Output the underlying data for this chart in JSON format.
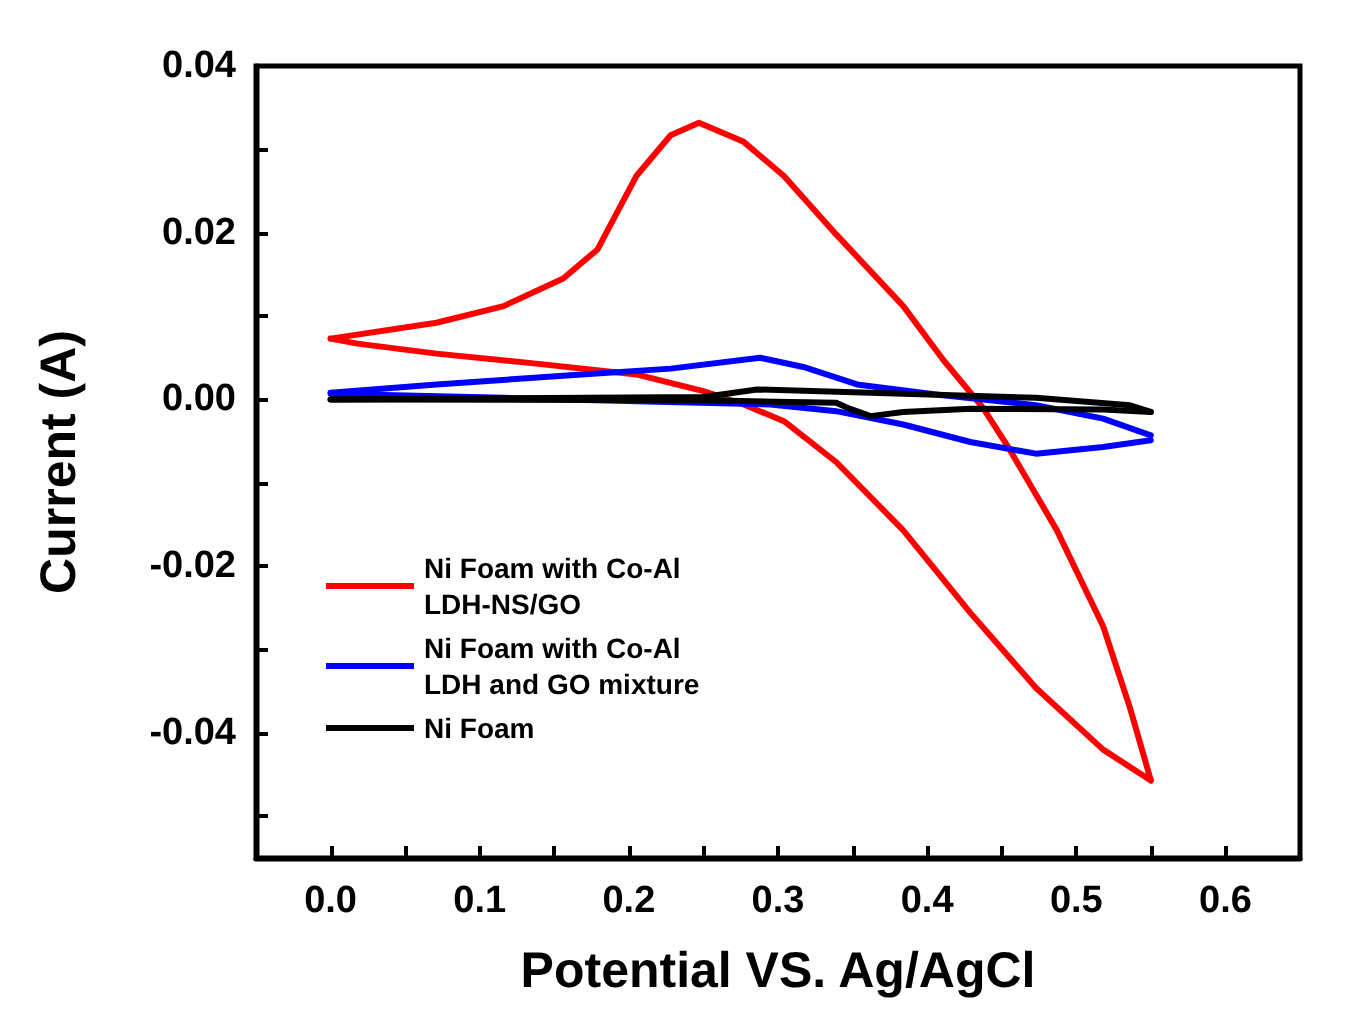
{
  "chart_data": {
    "type": "line",
    "xlabel": "Potential VS. Ag/AgCl",
    "ylabel": "Current (A)",
    "xlim": [
      -0.05,
      0.65
    ],
    "ylim": [
      -0.055,
      0.04
    ],
    "xticks": [
      {
        "value": 0,
        "label": "0.0"
      },
      {
        "value": 0.05,
        "label": null
      },
      {
        "value": 0.1,
        "label": "0.1"
      },
      {
        "value": 0.15,
        "label": null
      },
      {
        "value": 0.2,
        "label": "0.2"
      },
      {
        "value": 0.25,
        "label": null
      },
      {
        "value": 0.3,
        "label": "0.3"
      },
      {
        "value": 0.35,
        "label": null
      },
      {
        "value": 0.4,
        "label": "0.4"
      },
      {
        "value": 0.45,
        "label": null
      },
      {
        "value": 0.5,
        "label": "0.5"
      },
      {
        "value": 0.55,
        "label": null
      },
      {
        "value": 0.6,
        "label": "0.6"
      }
    ],
    "yticks": [
      {
        "value": -0.05,
        "label": null
      },
      {
        "value": -0.04,
        "label": "-0.04"
      },
      {
        "value": -0.03,
        "label": null
      },
      {
        "value": -0.02,
        "label": "-0.02"
      },
      {
        "value": -0.01,
        "label": null
      },
      {
        "value": 0,
        "label": "0.00"
      },
      {
        "value": 0.01,
        "label": null
      },
      {
        "value": 0.02,
        "label": "0.02"
      },
      {
        "value": 0.03,
        "label": null
      },
      {
        "value": 0.04,
        "label": "0.04"
      }
    ],
    "legend": "left",
    "marker": "none",
    "line_style": "solid",
    "series": [
      {
        "name": "Ni Foam with Co-Al LDH-NS/GO",
        "color": "#ff0000",
        "x": [
          0,
          0.071,
          0.116,
          0.156,
          0.179,
          0.205,
          0.228,
          0.247,
          0.277,
          0.304,
          0.339,
          0.384,
          0.411,
          0.4375,
          0.455,
          0.487,
          0.518,
          0.536,
          0.55
        ],
        "values": [
          0.0073,
          0.0092,
          0.0112,
          0.0145,
          0.018,
          0.0268,
          0.0317,
          0.0332,
          0.0309,
          0.0268,
          0.0198,
          0.0112,
          0.0047,
          -0.001,
          -0.0059,
          -0.0157,
          -0.0272,
          -0.037,
          -0.0457
        ]
      },
      {
        "color": "#ff0000",
        "x": [
          0.55,
          0.518,
          0.473,
          0.429,
          0.384,
          0.339,
          0.304,
          0.277,
          0.25,
          0.205,
          0.138,
          0.071,
          0.018,
          0
        ],
        "values": [
          -0.0457,
          -0.042,
          -0.0346,
          -0.0256,
          -0.0157,
          -0.0075,
          -0.0026,
          -0.0006,
          0.001,
          0.003,
          0.0043,
          0.0055,
          0.0067,
          0.0073
        ]
      },
      {
        "name": "Ni Foam with Co-Al LDH and GO mixture",
        "color": "#0000ff",
        "x": [
          0,
          0.071,
          0.161,
          0.228,
          0.288,
          0.317,
          0.353,
          0.406,
          0.473,
          0.518,
          0.55
        ],
        "values": [
          0.0008,
          0.0018,
          0.0029,
          0.0037,
          0.005,
          0.0039,
          0.0018,
          0.0006,
          -0.0007,
          -0.0023,
          -0.0043
        ]
      },
      {
        "color": "#0000ff",
        "x": [
          0.55,
          0.518,
          0.473,
          0.429,
          0.384,
          0.339,
          0.295,
          0.205,
          0.116,
          0
        ],
        "values": [
          -0.0049,
          -0.0057,
          -0.0065,
          -0.0051,
          -0.003,
          -0.0014,
          -0.0006,
          -0.0002,
          0.0002,
          0.0007
        ]
      },
      {
        "name": "Ni Foam",
        "color": "#000000",
        "x": [
          0,
          0.25,
          0.286,
          0.384,
          0.473,
          0.536,
          0.55
        ],
        "values": [
          0,
          0.0003,
          0.0012,
          0.0007,
          0.0002,
          -0.0007,
          -0.0015
        ]
      },
      {
        "color": "#000000",
        "x": [
          0.55,
          0.518,
          0.429,
          0.384,
          0.362,
          0.348,
          0.339,
          0.25,
          0
        ],
        "values": [
          -0.0015,
          -0.0012,
          -0.0011,
          -0.0015,
          -0.002,
          -0.0011,
          -0.0004,
          -0.0001,
          0
        ]
      }
    ]
  }
}
